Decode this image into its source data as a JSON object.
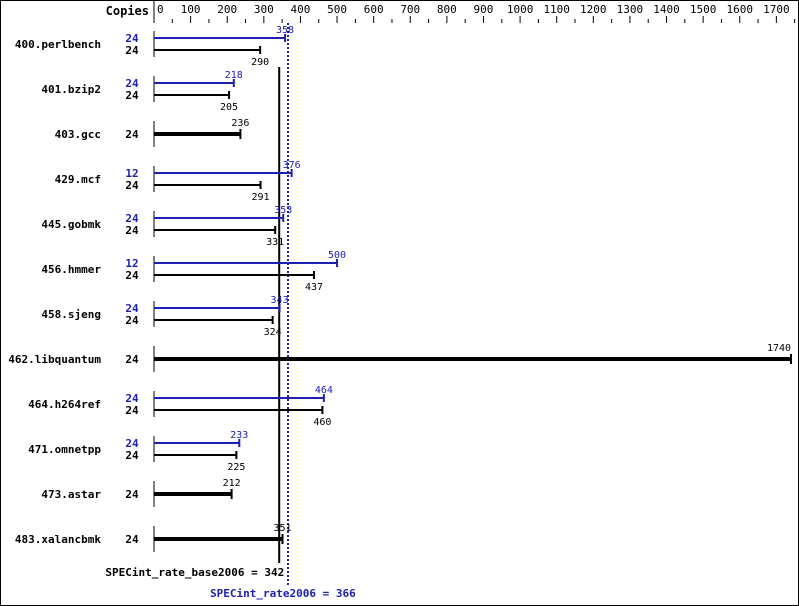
{
  "chart_data": {
    "type": "bar",
    "orientation": "horizontal",
    "axis_label": "Copies",
    "xlim": [
      0,
      1750
    ],
    "x_ticks": [
      0,
      100,
      200,
      300,
      400,
      500,
      600,
      700,
      800,
      900,
      1000,
      1100,
      1200,
      1300,
      1400,
      1500,
      1600,
      1700
    ],
    "benchmarks": [
      {
        "name": "400.perlbench",
        "peak_copies": "24",
        "peak": 358,
        "base_copies": "24",
        "base": 290
      },
      {
        "name": "401.bzip2",
        "peak_copies": "24",
        "peak": 218,
        "base_copies": "24",
        "base": 205
      },
      {
        "name": "403.gcc",
        "base_copies": "24",
        "base": 236
      },
      {
        "name": "429.mcf",
        "peak_copies": "12",
        "peak": 376,
        "base_copies": "24",
        "base": 291
      },
      {
        "name": "445.gobmk",
        "peak_copies": "24",
        "peak": 353,
        "base_copies": "24",
        "base": 331
      },
      {
        "name": "456.hmmer",
        "peak_copies": "12",
        "peak": 500,
        "base_copies": "24",
        "base": 437
      },
      {
        "name": "458.sjeng",
        "peak_copies": "24",
        "peak": 343,
        "base_copies": "24",
        "base": 324
      },
      {
        "name": "462.libquantum",
        "base_copies": "24",
        "base": 1740
      },
      {
        "name": "464.h264ref",
        "peak_copies": "24",
        "peak": 464,
        "base_copies": "24",
        "base": 460
      },
      {
        "name": "471.omnetpp",
        "peak_copies": "24",
        "peak": 233,
        "base_copies": "24",
        "base": 225
      },
      {
        "name": "473.astar",
        "base_copies": "24",
        "base": 212
      },
      {
        "name": "483.xalancbmk",
        "base_copies": "24",
        "base": 351
      }
    ],
    "base_metric": {
      "label": "SPECint_rate_base2006 = 342",
      "value": 342
    },
    "peak_metric": {
      "label": "SPECint_rate2006 = 366",
      "value": 366
    },
    "colors": {
      "base": "#000000",
      "peak": "#2020b0"
    }
  }
}
